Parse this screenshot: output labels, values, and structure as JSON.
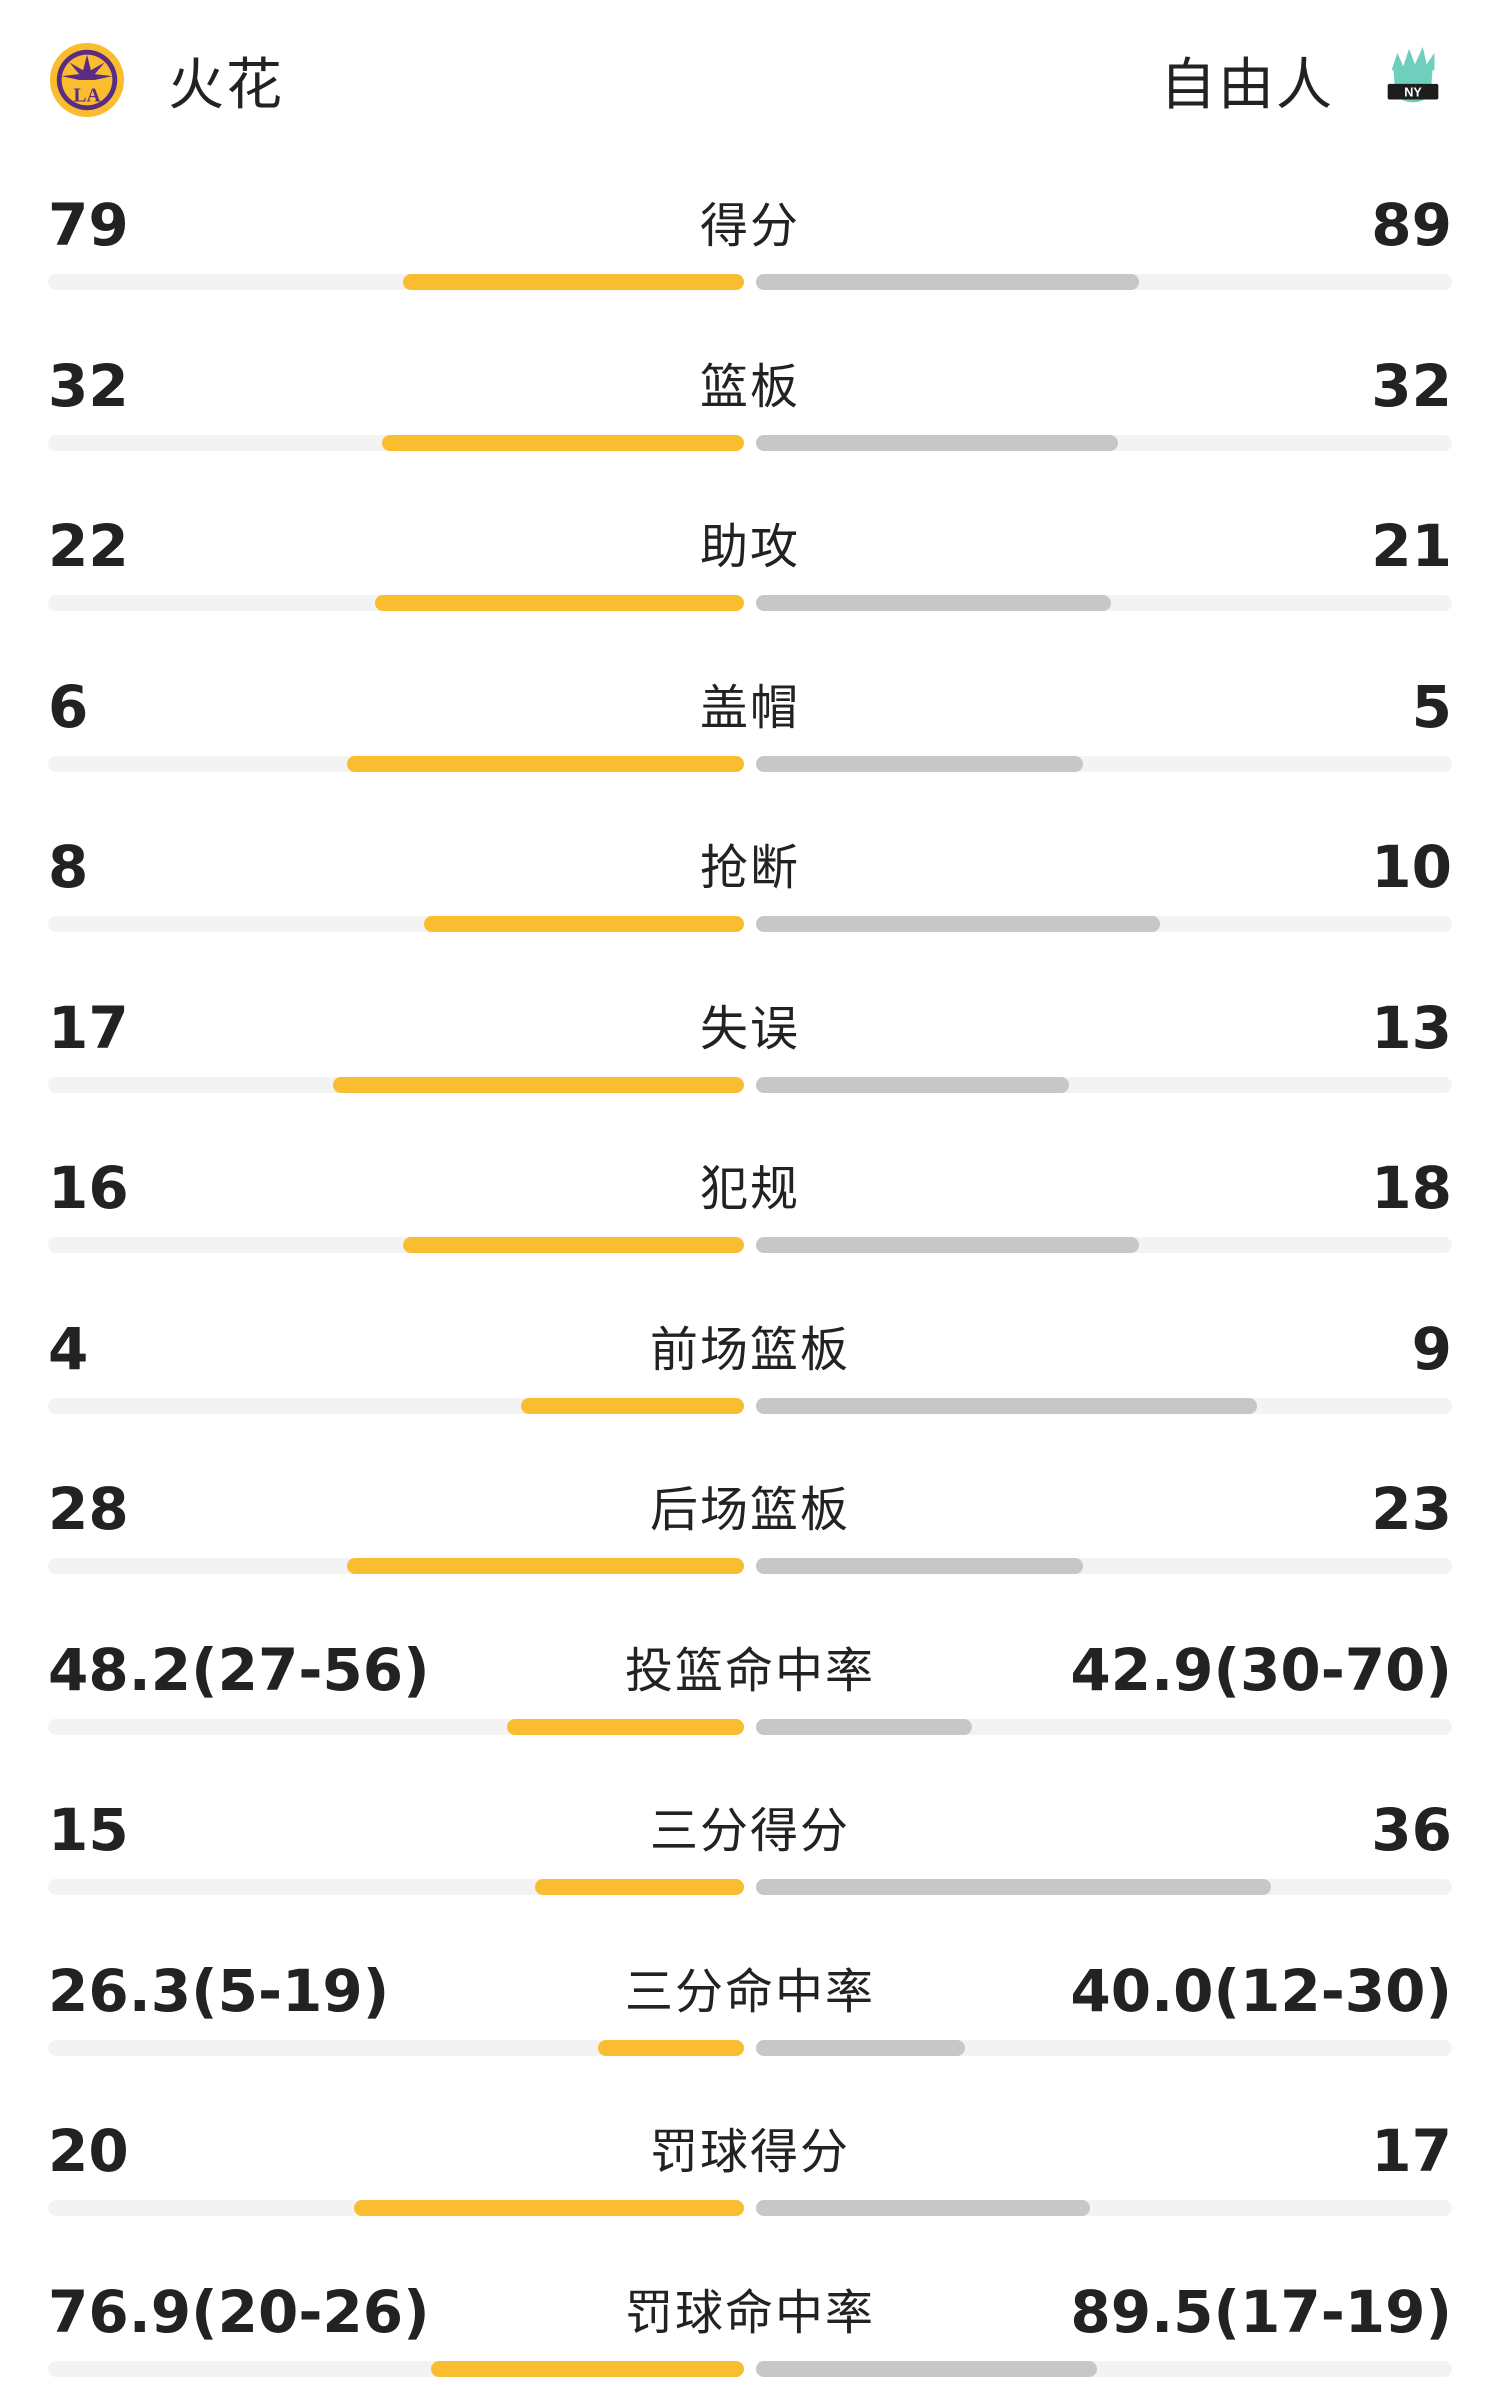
{
  "header": {
    "home_team": "火花",
    "away_team": "自由人",
    "home_logo_icon": "la-sparks-logo-icon",
    "away_logo_icon": "ny-liberty-logo-icon"
  },
  "colors": {
    "home_bar": "#fbbd30",
    "away_bar": "#c7c7c7",
    "track": "#f3f3f3"
  },
  "stats": [
    {
      "label": "得分",
      "home": "79",
      "away": "89",
      "home_fill": 0.49,
      "away_fill": 0.55
    },
    {
      "label": "篮板",
      "home": "32",
      "away": "32",
      "home_fill": 0.52,
      "away_fill": 0.52
    },
    {
      "label": "助攻",
      "home": "22",
      "away": "21",
      "home_fill": 0.53,
      "away_fill": 0.51
    },
    {
      "label": "盖帽",
      "home": "6",
      "away": "5",
      "home_fill": 0.57,
      "away_fill": 0.47
    },
    {
      "label": "抢断",
      "home": "8",
      "away": "10",
      "home_fill": 0.46,
      "away_fill": 0.58
    },
    {
      "label": "失误",
      "home": "17",
      "away": "13",
      "home_fill": 0.59,
      "away_fill": 0.45
    },
    {
      "label": "犯规",
      "home": "16",
      "away": "18",
      "home_fill": 0.49,
      "away_fill": 0.55
    },
    {
      "label": "前场篮板",
      "home": "4",
      "away": "9",
      "home_fill": 0.32,
      "away_fill": 0.72
    },
    {
      "label": "后场篮板",
      "home": "28",
      "away": "23",
      "home_fill": 0.57,
      "away_fill": 0.47
    },
    {
      "label": "投篮命中率",
      "home": "48.2(27-56)",
      "away": "42.9(30-70)",
      "home_fill": 0.34,
      "away_fill": 0.31
    },
    {
      "label": "三分得分",
      "home": "15",
      "away": "36",
      "home_fill": 0.3,
      "away_fill": 0.74
    },
    {
      "label": "三分命中率",
      "home": "26.3(5-19)",
      "away": "40.0(12-30)",
      "home_fill": 0.21,
      "away_fill": 0.3
    },
    {
      "label": "罚球得分",
      "home": "20",
      "away": "17",
      "home_fill": 0.56,
      "away_fill": 0.48
    },
    {
      "label": "罚球命中率",
      "home": "76.9(20-26)",
      "away": "89.5(17-19)",
      "home_fill": 0.45,
      "away_fill": 0.49
    }
  ]
}
